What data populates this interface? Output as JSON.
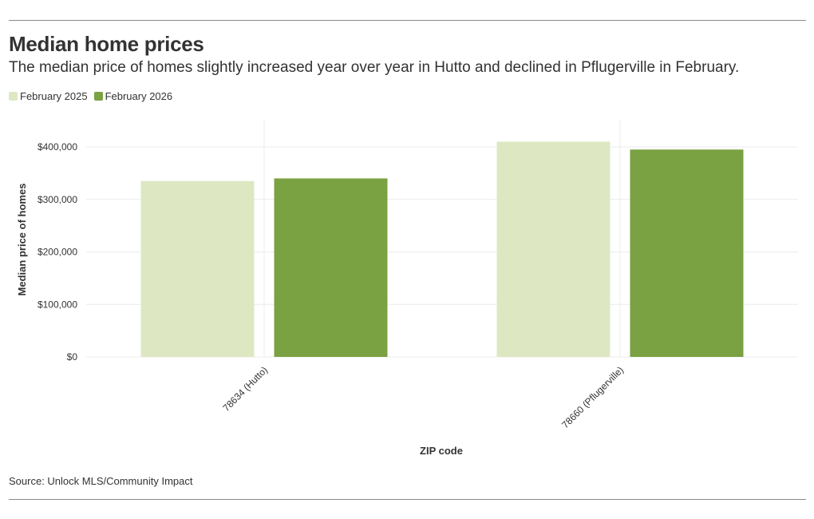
{
  "header": {
    "title": "Median home prices",
    "subtitle": "The median price of homes slightly increased year over year in Hutto and declined in Pflugerville in February."
  },
  "footer": {
    "source": "Source: Unlock MLS/Community Impact"
  },
  "colors": {
    "february_2025": "#dde8c3",
    "february_2026": "#7aa142",
    "grid": "#ececec"
  },
  "chart_data": {
    "type": "bar",
    "title": "Median home prices",
    "xlabel": "ZIP code",
    "ylabel": "Median price of homes",
    "categories": [
      "78634 (Hutto)",
      "78660 (Pflugerville)"
    ],
    "series": [
      {
        "name": "February 2025",
        "values": [
          335000,
          410000
        ]
      },
      {
        "name": "February 2026",
        "values": [
          340000,
          395000
        ]
      }
    ],
    "yticks": [
      0,
      100000,
      200000,
      300000,
      400000
    ],
    "ytick_labels": [
      "$0",
      "$100,000",
      "$200,000",
      "$300,000",
      "$400,000"
    ],
    "ylim": [
      0,
      450000
    ],
    "legend_position": "top-left"
  }
}
